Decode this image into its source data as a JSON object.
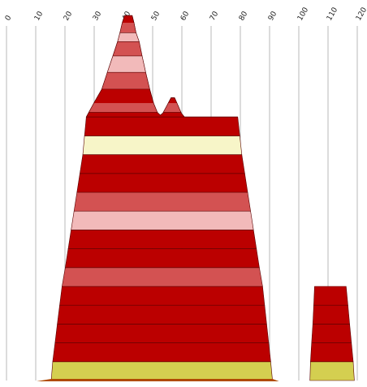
{
  "chart_data": {
    "type": "area",
    "title": "",
    "xlabel": "",
    "ylabel": "",
    "xlim": [
      0,
      120
    ],
    "x_ticks": [
      "0",
      "10",
      "20",
      "30",
      "40",
      "50",
      "60",
      "70",
      "80",
      "90",
      "100",
      "110",
      "120"
    ],
    "grid": "vertical",
    "legend": "none",
    "colors": {
      "dark_red": "#bb0000",
      "medium_red": "#d35252",
      "pink": "#f2baba",
      "cream": "#f7f5c8",
      "olive": "#d4cf50",
      "baseline": "#b04a00"
    },
    "shapes": [
      {
        "name": "main",
        "layers": [
          {
            "color": "olive",
            "bottom": [
              15.3,
              91.0
            ],
            "top": [
              15.8,
              90.4
            ]
          },
          {
            "color": "dark_red",
            "bottom": [
              15.8,
              90.4
            ],
            "top": [
              16.6,
              89.7
            ]
          },
          {
            "color": "dark_red",
            "bottom": [
              16.6,
              89.7
            ],
            "top": [
              17.4,
              89.0
            ]
          },
          {
            "color": "dark_red",
            "bottom": [
              17.4,
              89.0
            ],
            "top": [
              18.2,
              88.3
            ]
          },
          {
            "color": "dark_red",
            "bottom": [
              18.2,
              88.3
            ],
            "top": [
              19.0,
              87.6
            ]
          },
          {
            "color": "medium_red",
            "bottom": [
              19.0,
              87.6
            ],
            "top": [
              20.1,
              86.5
            ]
          },
          {
            "color": "dark_red",
            "bottom": [
              20.1,
              86.5
            ],
            "top": [
              21.1,
              85.5
            ]
          },
          {
            "color": "dark_red",
            "bottom": [
              21.1,
              85.5
            ],
            "top": [
              22.1,
              84.5
            ]
          },
          {
            "color": "pink",
            "bottom": [
              22.1,
              84.5
            ],
            "top": [
              23.1,
              83.5
            ]
          },
          {
            "color": "medium_red",
            "bottom": [
              23.1,
              83.5
            ],
            "top": [
              24.1,
              82.5
            ]
          },
          {
            "color": "dark_red",
            "bottom": [
              24.1,
              82.5
            ],
            "top": [
              25.1,
              81.5
            ]
          },
          {
            "color": "dark_red",
            "bottom": [
              25.1,
              81.5
            ],
            "top": [
              26.1,
              80.5
            ]
          },
          {
            "color": "cream",
            "bottom": [
              26.1,
              80.5
            ],
            "top": [
              26.7,
              79.8
            ]
          },
          {
            "color": "dark_red",
            "bottom": [
              26.7,
              79.8
            ],
            "top": [
              27.3,
              79.1
            ]
          }
        ],
        "peak_outline": [
          [
            27.3,
            0
          ],
          [
            29.9,
            3.9
          ],
          [
            32.6,
            7.8
          ],
          [
            34.5,
            12.5
          ],
          [
            36.4,
            17.1
          ],
          [
            38.0,
            21.1
          ],
          [
            38.8,
            23.6
          ],
          [
            39.6,
            26.4
          ],
          [
            40.4,
            28.4
          ],
          [
            41.7,
            28.4
          ],
          [
            43.0,
            28.4
          ],
          [
            43.6,
            26.4
          ],
          [
            44.3,
            23.6
          ],
          [
            45.4,
            21.1
          ],
          [
            46.4,
            17.1
          ],
          [
            47.6,
            12.5
          ],
          [
            49.0,
            7.8
          ],
          [
            50.3,
            3.9
          ],
          [
            51.6,
            1.3
          ],
          [
            52.6,
            0.5
          ],
          [
            53.5,
            1.1
          ],
          [
            54.9,
            3.2
          ],
          [
            56.3,
            5.4
          ],
          [
            57.5,
            5.4
          ],
          [
            58.7,
            3.2
          ],
          [
            59.8,
            1.1
          ],
          [
            60.9,
            0
          ],
          [
            79.1,
            0
          ]
        ],
        "peak_bands": [
          {
            "color": "medium_red",
            "from": 1.3,
            "to": 3.9
          },
          {
            "color": "medium_red",
            "from": 7.8,
            "to": 12.5
          },
          {
            "color": "pink",
            "from": 12.5,
            "to": 17.1
          },
          {
            "color": "medium_red",
            "from": 17.1,
            "to": 21.1
          },
          {
            "color": "pink",
            "from": 21.1,
            "to": 23.6
          },
          {
            "color": "medium_red",
            "from": 23.6,
            "to": 26.4
          }
        ]
      },
      {
        "name": "right",
        "layers": [
          {
            "color": "olive",
            "bottom": [
              103.8,
              119.0
            ],
            "top": [
              104.0,
              118.6
            ]
          },
          {
            "color": "dark_red",
            "bottom": [
              104.0,
              118.6
            ],
            "top": [
              104.4,
              118.0
            ]
          },
          {
            "color": "dark_red",
            "bottom": [
              104.4,
              118.0
            ],
            "top": [
              104.8,
              117.4
            ]
          },
          {
            "color": "dark_red",
            "bottom": [
              104.8,
              117.4
            ],
            "top": [
              105.1,
              116.8
            ]
          },
          {
            "color": "dark_red",
            "bottom": [
              105.1,
              116.8
            ],
            "top": [
              105.4,
              116.2
            ]
          }
        ]
      }
    ]
  }
}
